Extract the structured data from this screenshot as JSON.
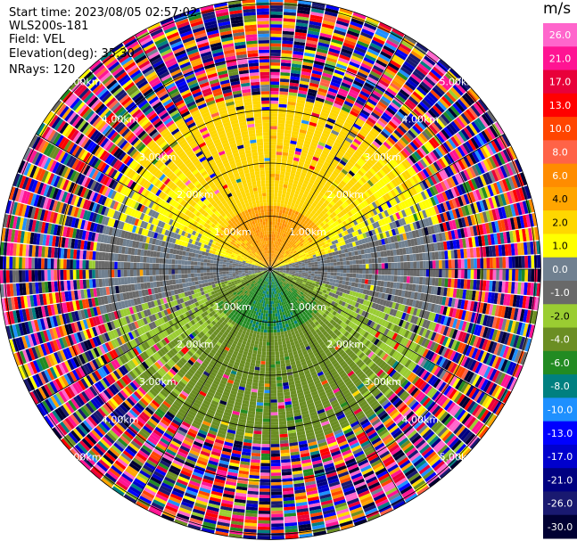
{
  "header": {
    "start_time": "Start time: 2023/08/05 02:57:02",
    "instrument": "WLS200s-181",
    "field": "Field: VEL",
    "elevation": "Elevation(deg): 35.30",
    "nrays": "NRays: 120"
  },
  "colorbar": {
    "unit": "m/s",
    "labels": [
      "26.0",
      "21.0",
      "17.0",
      "13.0",
      "10.0",
      "8.0",
      "6.0",
      "4.0",
      "2.0",
      "1.0",
      "0.0",
      "-1.0",
      "-2.0",
      "-4.0",
      "-6.0",
      "-8.0",
      "-10.0",
      "-13.0",
      "-17.0",
      "-21.0",
      "-26.0",
      "-30.0"
    ],
    "colors": [
      "#ff66cc",
      "#ff1493",
      "#e8003a",
      "#ff0000",
      "#ff4500",
      "#ff6347",
      "#ff8c00",
      "#ffa500",
      "#ffd700",
      "#ffff00",
      "#708090",
      "#696969",
      "#9acd32",
      "#6b8e23",
      "#228b22",
      "#008080",
      "#1e90ff",
      "#0000ff",
      "#0000cd",
      "#000080",
      "#191970",
      "#000033"
    ]
  },
  "chart_data": {
    "type": "ppi",
    "field": "VEL",
    "units": "m/s",
    "nrays": 120,
    "elevation_deg": 35.3,
    "range_rings_km": [
      1.0,
      2.0,
      3.0,
      4.0,
      5.0
    ],
    "ring_labels": [
      "1.00km",
      "2.00km",
      "3.00km",
      "4.00km",
      "5.00km"
    ],
    "max_range_km": 5.1,
    "spoke_angles_deg": [
      0,
      30,
      60,
      90,
      120,
      150,
      180,
      210,
      240,
      270,
      300,
      330
    ],
    "vmin": -30.0,
    "vmax": 30.0,
    "velocity_pattern": {
      "approx_max_near_range_ms": 6.0,
      "approx_min_near_range_ms": -6.0,
      "north_sector": "positive (2 to 6 m/s)",
      "south_sector": "negative (-2 to -6 m/s)",
      "east_west": "near zero (-1 to 1 m/s)",
      "beyond_range_km": 3.3,
      "noise_description": "random values spanning -30 to 30 m/s"
    }
  }
}
